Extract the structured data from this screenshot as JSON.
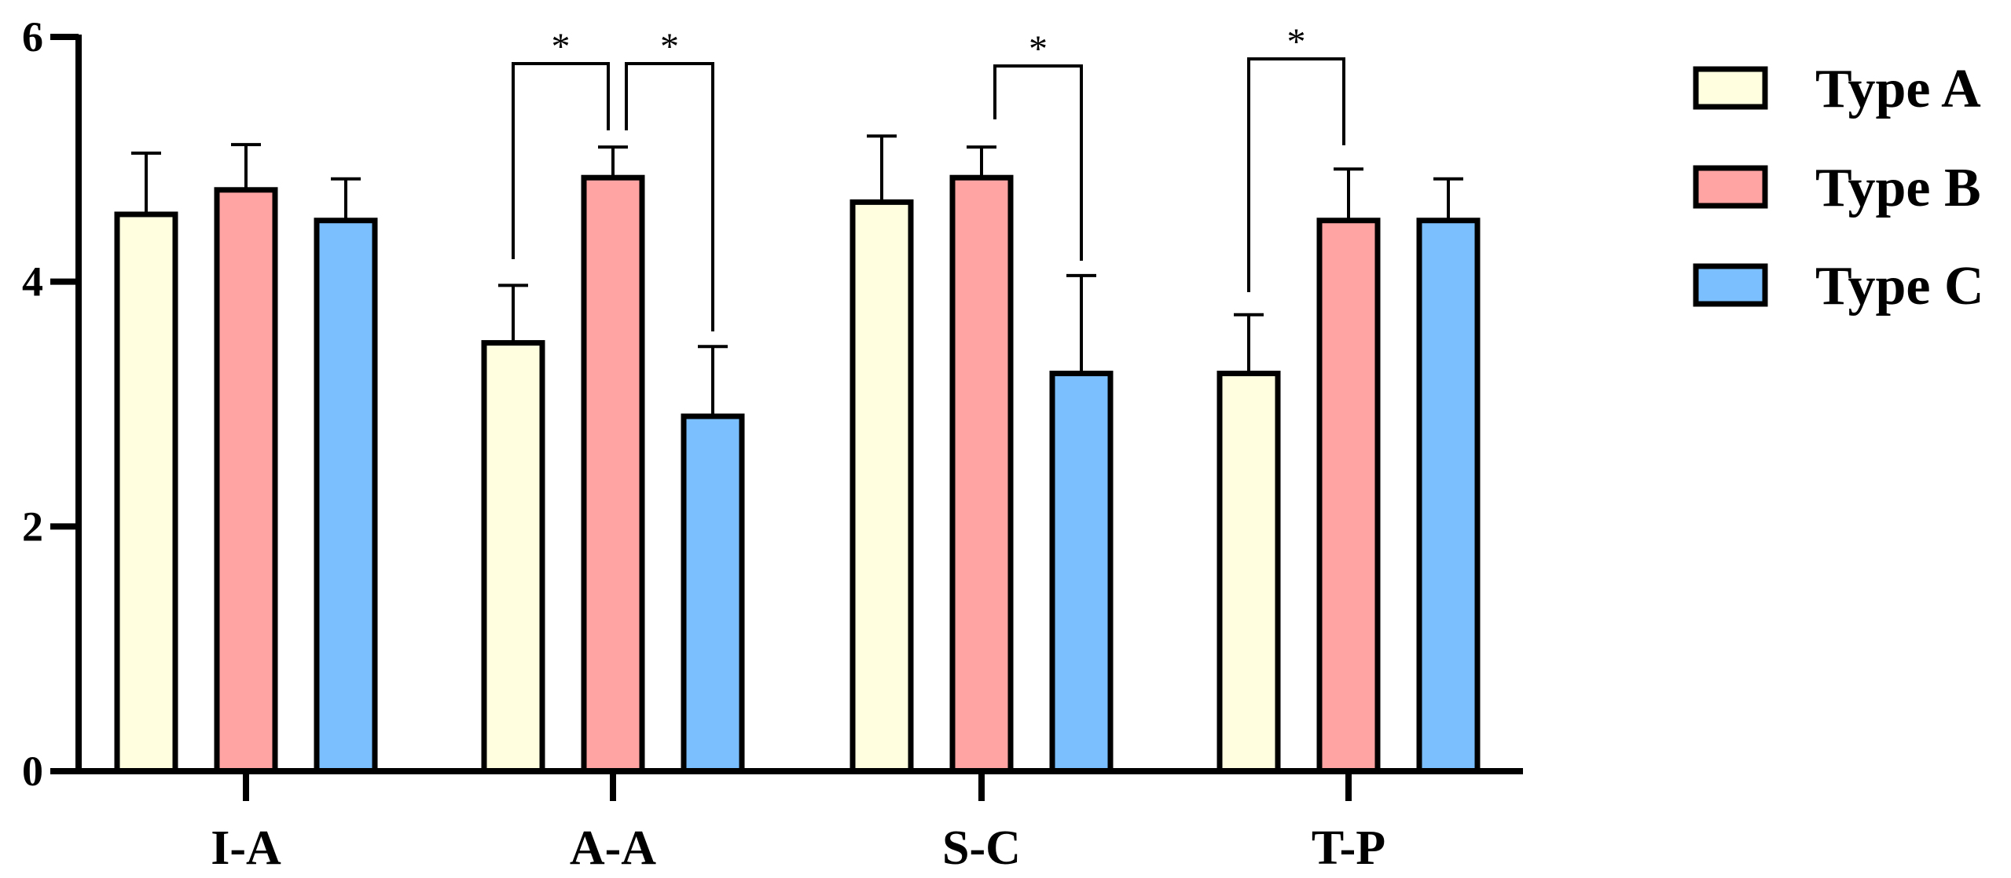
{
  "chart_data": {
    "type": "bar",
    "title": "",
    "xlabel": "",
    "ylabel": "",
    "ylim": [
      0,
      6
    ],
    "yticks": [
      0,
      2,
      4,
      6
    ],
    "categories": [
      "I-A",
      "A-A",
      "S-C",
      "T-P"
    ],
    "series": [
      {
        "name": "Type A",
        "color": "#FFFFE0",
        "values": [
          4.55,
          3.5,
          4.65,
          3.25
        ],
        "errors": [
          0.5,
          0.47,
          0.54,
          0.48
        ]
      },
      {
        "name": "Type B",
        "color": "#FFA3A3",
        "values": [
          4.75,
          4.85,
          4.85,
          4.5
        ],
        "errors": [
          0.37,
          0.25,
          0.25,
          0.42
        ]
      },
      {
        "name": "Type C",
        "color": "#7BBFFF",
        "values": [
          4.5,
          2.9,
          3.25,
          4.5
        ],
        "errors": [
          0.34,
          0.57,
          0.8,
          0.34
        ]
      }
    ],
    "significance": [
      {
        "category": 1,
        "from": 0,
        "to": 1,
        "label": "*"
      },
      {
        "category": 1,
        "from": 1,
        "to": 2,
        "label": "*"
      },
      {
        "category": 2,
        "from": 1,
        "to": 2,
        "label": "*"
      },
      {
        "category": 3,
        "from": 0,
        "to": 1,
        "label": "*"
      }
    ],
    "legend_position": "top-right"
  }
}
